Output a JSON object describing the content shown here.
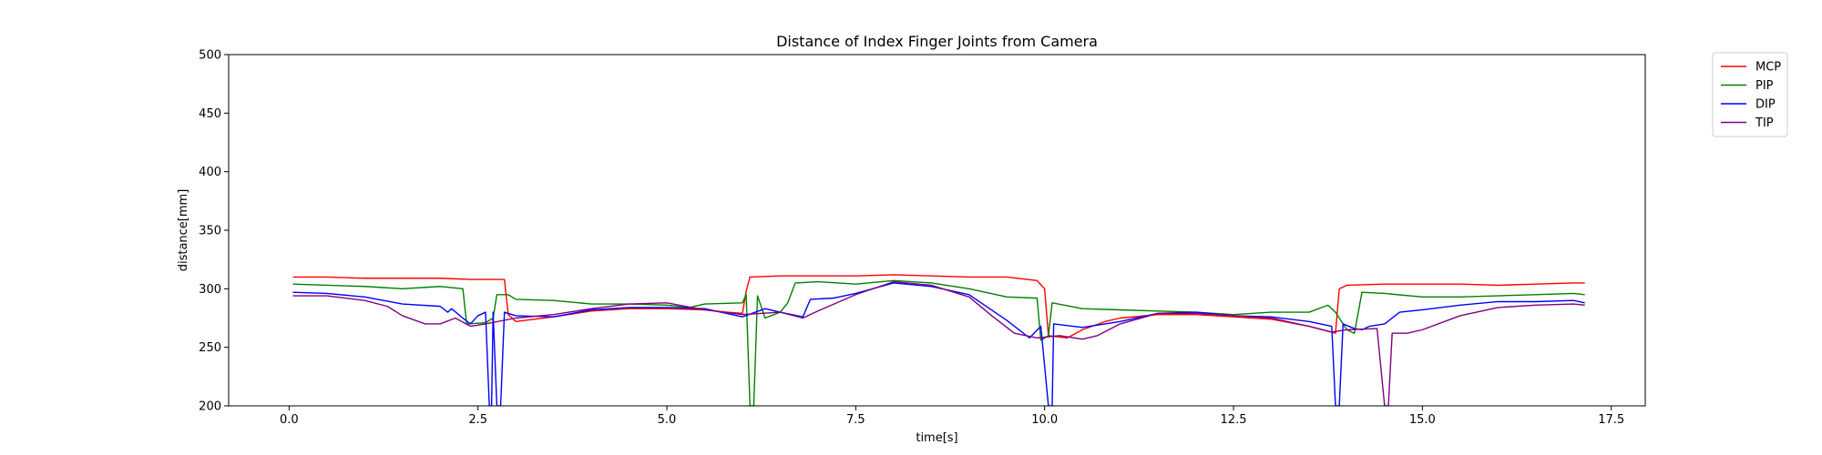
{
  "chart_data": {
    "type": "line",
    "title": "Distance of Index Finger Joints from Camera",
    "xlabel": "time[s]",
    "ylabel": "distance[mm]",
    "xlim": [
      -0.8,
      17.95
    ],
    "ylim": [
      200,
      500
    ],
    "xticks": [
      0.0,
      2.5,
      5.0,
      7.5,
      10.0,
      12.5,
      15.0,
      17.5
    ],
    "xtick_labels": [
      "0.0",
      "2.5",
      "5.0",
      "7.5",
      "10.0",
      "12.5",
      "15.0",
      "17.5"
    ],
    "yticks": [
      200,
      250,
      300,
      350,
      400,
      450,
      500
    ],
    "ytick_labels": [
      "200",
      "250",
      "300",
      "350",
      "400",
      "450",
      "500"
    ],
    "grid": false,
    "legend_position": "outside-top-right",
    "series": [
      {
        "name": "MCP",
        "color": "#ff0000",
        "points": [
          [
            0.05,
            310
          ],
          [
            0.5,
            310
          ],
          [
            1.0,
            309
          ],
          [
            1.5,
            309
          ],
          [
            2.0,
            309
          ],
          [
            2.4,
            308
          ],
          [
            2.85,
            308
          ],
          [
            2.9,
            278
          ],
          [
            3.0,
            272
          ],
          [
            3.5,
            276
          ],
          [
            4.0,
            281
          ],
          [
            4.5,
            283
          ],
          [
            5.0,
            283
          ],
          [
            5.5,
            282
          ],
          [
            5.8,
            280
          ],
          [
            6.0,
            279
          ],
          [
            6.05,
            298
          ],
          [
            6.1,
            310
          ],
          [
            6.5,
            311
          ],
          [
            7.0,
            311
          ],
          [
            7.5,
            311
          ],
          [
            8.0,
            312
          ],
          [
            8.5,
            311
          ],
          [
            9.0,
            310
          ],
          [
            9.5,
            310
          ],
          [
            9.9,
            307
          ],
          [
            10.0,
            300
          ],
          [
            10.05,
            260
          ],
          [
            10.3,
            258
          ],
          [
            10.5,
            265
          ],
          [
            10.8,
            272
          ],
          [
            11.0,
            275
          ],
          [
            11.5,
            278
          ],
          [
            12.0,
            278
          ],
          [
            12.5,
            276
          ],
          [
            13.0,
            274
          ],
          [
            13.5,
            268
          ],
          [
            13.85,
            262
          ],
          [
            13.9,
            300
          ],
          [
            14.0,
            303
          ],
          [
            14.5,
            304
          ],
          [
            15.0,
            304
          ],
          [
            15.5,
            304
          ],
          [
            16.0,
            303
          ],
          [
            16.5,
            304
          ],
          [
            17.0,
            305
          ],
          [
            17.15,
            305
          ]
        ]
      },
      {
        "name": "PIP",
        "color": "#008000",
        "points": [
          [
            0.05,
            304
          ],
          [
            0.5,
            303
          ],
          [
            1.0,
            302
          ],
          [
            1.5,
            300
          ],
          [
            2.0,
            302
          ],
          [
            2.3,
            300
          ],
          [
            2.35,
            270
          ],
          [
            2.6,
            271
          ],
          [
            2.7,
            275
          ],
          [
            2.75,
            295
          ],
          [
            2.9,
            295
          ],
          [
            3.0,
            291
          ],
          [
            3.5,
            290
          ],
          [
            4.0,
            287
          ],
          [
            4.5,
            287
          ],
          [
            5.0,
            286
          ],
          [
            5.3,
            284
          ],
          [
            5.5,
            287
          ],
          [
            6.0,
            288
          ],
          [
            6.05,
            295
          ],
          [
            6.1,
            200
          ],
          [
            6.15,
            200
          ],
          [
            6.2,
            294
          ],
          [
            6.3,
            275
          ],
          [
            6.5,
            280
          ],
          [
            6.6,
            288
          ],
          [
            6.7,
            305
          ],
          [
            7.0,
            306
          ],
          [
            7.5,
            304
          ],
          [
            8.0,
            307
          ],
          [
            8.5,
            305
          ],
          [
            9.0,
            300
          ],
          [
            9.5,
            293
          ],
          [
            9.9,
            292
          ],
          [
            9.95,
            256
          ],
          [
            10.05,
            260
          ],
          [
            10.1,
            288
          ],
          [
            10.5,
            283
          ],
          [
            11.0,
            282
          ],
          [
            11.5,
            281
          ],
          [
            12.0,
            280
          ],
          [
            12.5,
            278
          ],
          [
            13.0,
            280
          ],
          [
            13.5,
            280
          ],
          [
            13.75,
            286
          ],
          [
            13.85,
            280
          ],
          [
            14.0,
            265
          ],
          [
            14.1,
            262
          ],
          [
            14.2,
            297
          ],
          [
            14.5,
            296
          ],
          [
            15.0,
            293
          ],
          [
            15.5,
            293
          ],
          [
            16.0,
            294
          ],
          [
            16.5,
            295
          ],
          [
            17.0,
            296
          ],
          [
            17.15,
            295
          ]
        ]
      },
      {
        "name": "DIP",
        "color": "#0000ff",
        "points": [
          [
            0.05,
            297
          ],
          [
            0.5,
            296
          ],
          [
            1.0,
            293
          ],
          [
            1.5,
            287
          ],
          [
            2.0,
            285
          ],
          [
            2.1,
            280
          ],
          [
            2.15,
            283
          ],
          [
            2.3,
            275
          ],
          [
            2.4,
            270
          ],
          [
            2.5,
            277
          ],
          [
            2.6,
            280
          ],
          [
            2.65,
            200
          ],
          [
            2.68,
            200
          ],
          [
            2.7,
            280
          ],
          [
            2.75,
            200
          ],
          [
            2.8,
            200
          ],
          [
            2.85,
            280
          ],
          [
            3.0,
            277
          ],
          [
            3.5,
            276
          ],
          [
            4.0,
            282
          ],
          [
            4.5,
            284
          ],
          [
            5.0,
            284
          ],
          [
            5.5,
            283
          ],
          [
            6.0,
            276
          ],
          [
            6.3,
            283
          ],
          [
            6.5,
            280
          ],
          [
            6.8,
            276
          ],
          [
            6.9,
            291
          ],
          [
            7.2,
            292
          ],
          [
            7.5,
            296
          ],
          [
            8.0,
            305
          ],
          [
            8.5,
            302
          ],
          [
            9.0,
            295
          ],
          [
            9.5,
            273
          ],
          [
            9.8,
            258
          ],
          [
            9.95,
            268
          ],
          [
            10.05,
            200
          ],
          [
            10.1,
            200
          ],
          [
            10.12,
            270
          ],
          [
            10.5,
            267
          ],
          [
            11.0,
            272
          ],
          [
            11.5,
            279
          ],
          [
            12.0,
            280
          ],
          [
            12.5,
            277
          ],
          [
            13.0,
            276
          ],
          [
            13.5,
            272
          ],
          [
            13.8,
            268
          ],
          [
            13.85,
            200
          ],
          [
            13.9,
            200
          ],
          [
            13.95,
            270
          ],
          [
            14.1,
            266
          ],
          [
            14.2,
            265
          ],
          [
            14.3,
            268
          ],
          [
            14.5,
            270
          ],
          [
            14.7,
            280
          ],
          [
            15.0,
            282
          ],
          [
            15.5,
            286
          ],
          [
            16.0,
            289
          ],
          [
            16.5,
            289
          ],
          [
            17.0,
            290
          ],
          [
            17.15,
            288
          ]
        ]
      },
      {
        "name": "TIP",
        "color": "#800080",
        "points": [
          [
            0.05,
            294
          ],
          [
            0.5,
            294
          ],
          [
            1.0,
            290
          ],
          [
            1.3,
            285
          ],
          [
            1.5,
            277
          ],
          [
            1.8,
            270
          ],
          [
            2.0,
            270
          ],
          [
            2.2,
            275
          ],
          [
            2.4,
            268
          ],
          [
            2.6,
            270
          ],
          [
            3.0,
            275
          ],
          [
            3.5,
            278
          ],
          [
            4.0,
            283
          ],
          [
            4.5,
            287
          ],
          [
            5.0,
            288
          ],
          [
            5.5,
            282
          ],
          [
            6.0,
            278
          ],
          [
            6.5,
            280
          ],
          [
            6.8,
            275
          ],
          [
            7.0,
            281
          ],
          [
            7.5,
            295
          ],
          [
            8.0,
            306
          ],
          [
            8.5,
            303
          ],
          [
            9.0,
            293
          ],
          [
            9.3,
            277
          ],
          [
            9.6,
            262
          ],
          [
            9.9,
            258
          ],
          [
            10.2,
            260
          ],
          [
            10.5,
            257
          ],
          [
            10.7,
            260
          ],
          [
            11.0,
            270
          ],
          [
            11.5,
            279
          ],
          [
            12.0,
            279
          ],
          [
            12.5,
            277
          ],
          [
            13.0,
            275
          ],
          [
            13.5,
            268
          ],
          [
            13.8,
            263
          ],
          [
            14.0,
            265
          ],
          [
            14.4,
            266
          ],
          [
            14.5,
            200
          ],
          [
            14.55,
            200
          ],
          [
            14.6,
            262
          ],
          [
            14.8,
            262
          ],
          [
            15.0,
            265
          ],
          [
            15.5,
            277
          ],
          [
            16.0,
            284
          ],
          [
            16.5,
            286
          ],
          [
            17.0,
            287
          ],
          [
            17.15,
            286
          ]
        ]
      }
    ]
  }
}
